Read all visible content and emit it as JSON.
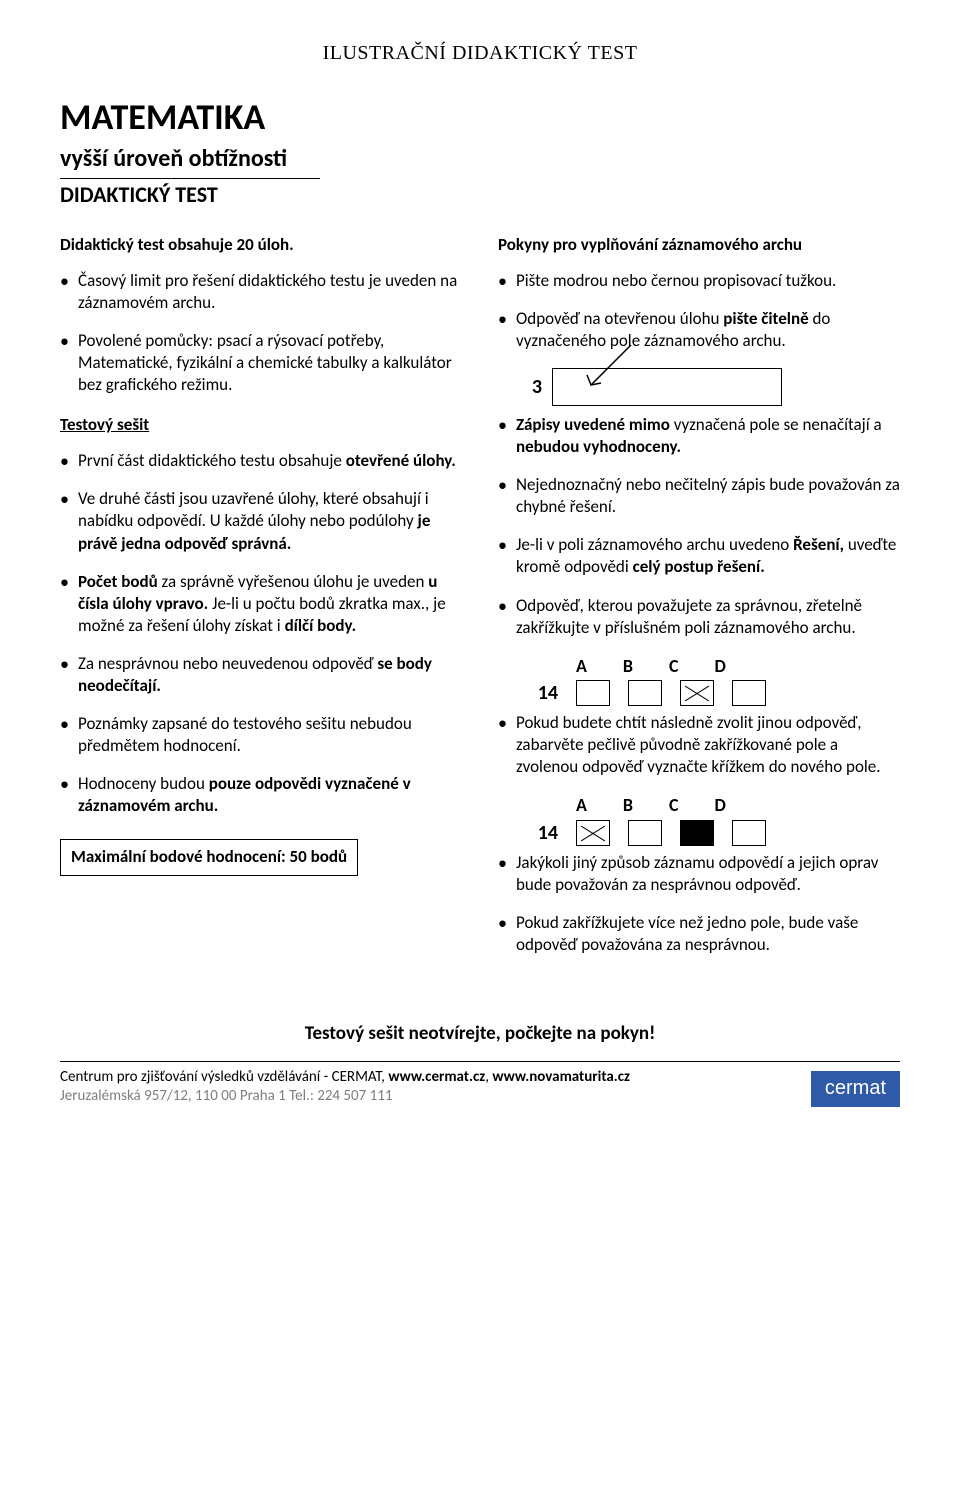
{
  "header": {
    "top_title": "ILUSTRAČNÍ DIDAKTICKÝ TEST",
    "main_title": "MATEMATIKA",
    "subtitle": "vyšší úroveň obtížnosti",
    "subtitle2": "DIDAKTICKÝ TEST"
  },
  "left": {
    "lead": "Didaktický test obsahuje 20 úloh.",
    "intro_bullets": [
      "Časový limit pro řešení didaktického testu je uveden na záznamovém archu.",
      "Povolené pomůcky: psací a rýsovací potřeby, Matematické, fyzikální a chemické tabulky a kalkulátor bez grafického režimu."
    ],
    "section_head": "Testový sešit",
    "sesit_bullets": [
      "První část didaktického testu obsahuje <b>otevřené úlohy.</b>",
      "Ve druhé části jsou uzavřené úlohy, které obsahují i nabídku odpovědí. U každé úlohy nebo podúlohy <b>je právě jedna odpověď správná.</b>",
      "<b>Počet bodů</b> za správně vyřešenou úlohu je uveden <b>u čísla úlohy vpravo.</b> Je-li u počtu bodů zkratka max., je možné za řešení úlohy získat i <b>dílčí body.</b>",
      "Za nesprávnou nebo neuvedenou odpověď <b>se body neodečítají.</b>",
      "Poznámky zapsané do testového sešitu nebudou předmětem hodnocení.",
      "Hodnoceny budou <b>pouze odpovědi vyznačené v záznamovém archu.</b>"
    ],
    "max_score": "Maximální bodové hodnocení: 50 bodů"
  },
  "right": {
    "section_head": "Pokyny pro vyplňování záznamového archu",
    "top_bullets": [
      "Pište modrou nebo černou propisovací tužkou.",
      "Odpověď na otevřenou úlohu <b>pište čitelně</b> do vyznačeného pole záznamového archu."
    ],
    "box3_num": "3",
    "mid_bullets": [
      "<b>Zápisy uvedené mimo</b> vyznačená pole se nenačítají a <b>nebudou vyhodnoceny.</b>",
      "Nejednoznačný nebo nečitelný zápis bude považován za chybné řešení.",
      "Je-li v poli záznamového archu uvedeno <b>Řešení,</b> uveďte kromě odpovědi <b>celý postup řešení.</b>",
      "Odpověď, kterou považujete za správnou, zřetelně zakřížkujte v příslušném poli záznamového archu."
    ],
    "abcd_labels": [
      "A",
      "B",
      "C",
      "D"
    ],
    "row14a_num": "14",
    "bullet_change": "Pokud budete chtít následně zvolit jinou odpověď, zabarvěte pečlivě původně zakřížkované pole a zvolenou odpověď vyznačte křížkem do nového pole.",
    "row14b_num": "14",
    "tail_bullets": [
      "Jakýkoli jiný způsob záznamu odpovědí a jejich oprav bude považován za nesprávnou odpověď.",
      "Pokud zakřížkujete více než jedno pole, bude vaše odpověď považována za nesprávnou."
    ]
  },
  "final_instruction": "Testový sešit neotvírejte, počkejte na pokyn!",
  "footer": {
    "line1_pre": "Centrum pro zjišťování výsledků vzdělávání - CERMAT, ",
    "url1": "www.cermat.cz",
    "sep": ", ",
    "url2": "www.novamaturita.cz",
    "addr": "Jeruzalémská 957/12, 110 00 Praha 1 Tel.: 224 507 111",
    "badge": "cermat"
  },
  "colors": {
    "text": "#000000",
    "muted": "#7f7f7f",
    "badge_bg": "#2e5aa8",
    "badge_text": "#ffffff",
    "background": "#ffffff"
  }
}
